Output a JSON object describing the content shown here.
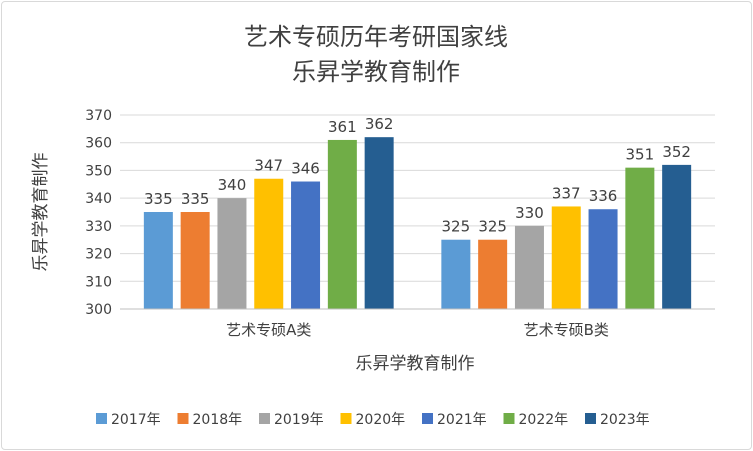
{
  "chart_data": {
    "type": "bar",
    "title": "艺术专硕历年考研国家线",
    "subtitle": "乐昇学教育制作",
    "xlabel": "乐昇学教育制作",
    "ylabel": "乐昇学教育制作",
    "categories": [
      "艺术专硕A类",
      "艺术专硕B类"
    ],
    "series": [
      {
        "name": "2017年",
        "color": "#5B9BD5",
        "values": [
          335,
          325
        ]
      },
      {
        "name": "2018年",
        "color": "#ED7D31",
        "values": [
          335,
          325
        ]
      },
      {
        "name": "2019年",
        "color": "#A5A5A5",
        "values": [
          340,
          330
        ]
      },
      {
        "name": "2020年",
        "color": "#FFC000",
        "values": [
          347,
          337
        ]
      },
      {
        "name": "2021年",
        "color": "#4472C4",
        "values": [
          346,
          336
        ]
      },
      {
        "name": "2022年",
        "color": "#70AD47",
        "values": [
          361,
          351
        ]
      },
      {
        "name": "2023年",
        "color": "#255E91",
        "values": [
          362,
          352
        ]
      }
    ],
    "ylim": [
      300,
      370
    ],
    "yticks": [
      300,
      310,
      320,
      330,
      340,
      350,
      360,
      370
    ],
    "grid": true,
    "legend": "bottom"
  }
}
